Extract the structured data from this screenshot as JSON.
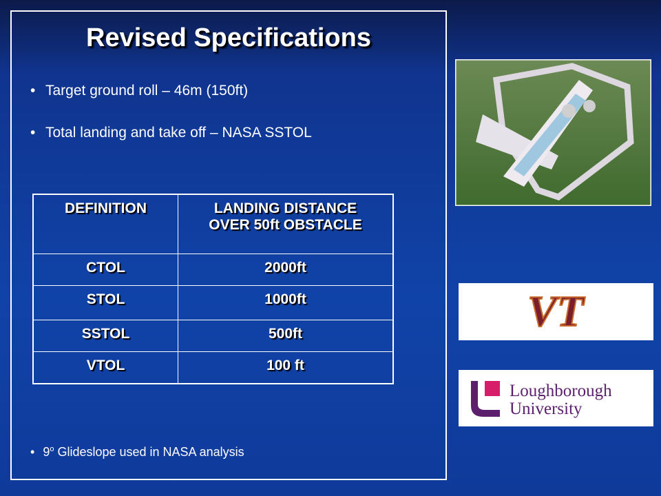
{
  "slide": {
    "title": "Revised Specifications",
    "bullets": [
      "Target ground roll – 46m (150ft)",
      "Total landing and take off – NASA SSTOL"
    ],
    "footnote": {
      "pre": "9",
      "sup": "o",
      "post": " Glideslope used in NASA analysis"
    },
    "table": {
      "header": [
        "DEFINITION",
        "LANDING DISTANCE OVER 50ft OBSTACLE"
      ],
      "rows": [
        [
          "CTOL",
          "2000ft"
        ],
        [
          "STOL",
          "1000ft"
        ],
        [
          "SSTOL",
          "500ft"
        ],
        [
          "VTOL",
          "100 ft"
        ]
      ]
    },
    "logos": {
      "vt": "VT",
      "lboro": [
        "Loughborough",
        "University"
      ]
    }
  }
}
